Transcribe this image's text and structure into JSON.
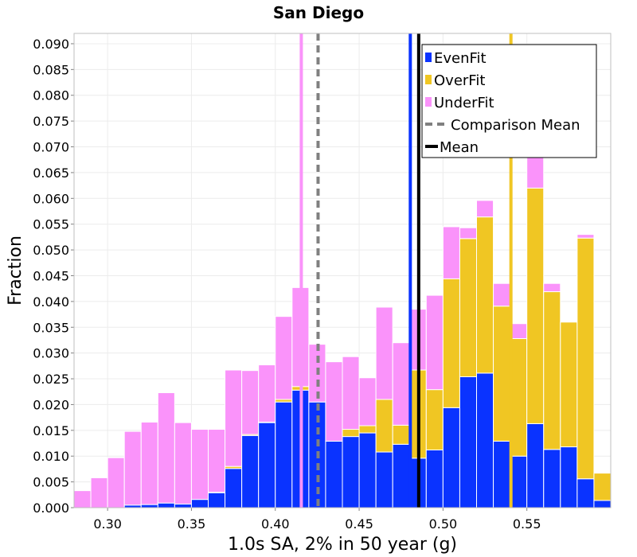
{
  "chart_data": {
    "type": "bar",
    "stacked": true,
    "title": "San Diego",
    "xlabel": "1.0s SA, 2% in 50 year (g)",
    "ylabel": "Fraction",
    "xlim": [
      0.28,
      0.6
    ],
    "ylim": [
      0,
      0.092
    ],
    "bin_width": 0.01,
    "xticks": [
      "0.30",
      "0.35",
      "0.40",
      "0.45",
      "0.50",
      "0.55"
    ],
    "xtick_values": [
      0.3,
      0.35,
      0.4,
      0.45,
      0.5,
      0.55
    ],
    "yticks": [
      "0.000",
      "0.005",
      "0.010",
      "0.015",
      "0.020",
      "0.025",
      "0.030",
      "0.035",
      "0.040",
      "0.045",
      "0.050",
      "0.055",
      "0.060",
      "0.065",
      "0.070",
      "0.075",
      "0.080",
      "0.085",
      "0.090"
    ],
    "ytick_values": [
      0,
      0.005,
      0.01,
      0.015,
      0.02,
      0.025,
      0.03,
      0.035,
      0.04,
      0.045,
      0.05,
      0.055,
      0.06,
      0.065,
      0.07,
      0.075,
      0.08,
      0.085,
      0.09
    ],
    "bin_centers": [
      0.285,
      0.295,
      0.305,
      0.315,
      0.325,
      0.335,
      0.345,
      0.355,
      0.365,
      0.375,
      0.385,
      0.395,
      0.405,
      0.415,
      0.425,
      0.435,
      0.445,
      0.455,
      0.465,
      0.475,
      0.485,
      0.495,
      0.505,
      0.515,
      0.525,
      0.535,
      0.545,
      0.555,
      0.565,
      0.575,
      0.585,
      0.595
    ],
    "series": [
      {
        "name": "EvenFit",
        "color": "#0a33ff",
        "values": [
          0,
          0,
          0,
          0.0005,
          0.0006,
          0.0009,
          0.0007,
          0.0016,
          0.0029,
          0.0076,
          0.014,
          0.0165,
          0.0205,
          0.0228,
          0.0205,
          0.0129,
          0.0138,
          0.0145,
          0.0108,
          0.0123,
          0.0096,
          0.0112,
          0.0194,
          0.0254,
          0.0261,
          0.0129,
          0.01,
          0.0163,
          0.0113,
          0.0118,
          0.0056,
          0.0014
        ]
      },
      {
        "name": "OverFit",
        "color": "#f0c623",
        "values": [
          0,
          0,
          0,
          0,
          0,
          0,
          0,
          0,
          0.0001,
          0.0004,
          0.0002,
          0.0001,
          0.0005,
          0.0007,
          0,
          0,
          0.0014,
          0.0014,
          0.0102,
          0.0037,
          0.0171,
          0.0117,
          0.025,
          0.0268,
          0.0303,
          0.0262,
          0.0228,
          0.0457,
          0.0306,
          0.0242,
          0.0467,
          0.0053
        ]
      },
      {
        "name": "UnderFit",
        "color": "#fa93fa",
        "values": [
          0.0033,
          0.0058,
          0.0097,
          0.0143,
          0.016,
          0.0214,
          0.0158,
          0.0136,
          0.0122,
          0.0187,
          0.0124,
          0.0111,
          0.0161,
          0.0192,
          0.0112,
          0.0154,
          0.0141,
          0.0093,
          0.0179,
          0.016,
          0.0118,
          0.0183,
          0.0101,
          0.0021,
          0.0032,
          0.0044,
          0.0029,
          0.008,
          0.0016,
          0,
          0.0007,
          0
        ]
      }
    ],
    "vertical_lines": [
      {
        "name": "EvenFit",
        "x": 0.4805,
        "color": "#0a33ff",
        "style": "solid"
      },
      {
        "name": "OverFit",
        "x": 0.5405,
        "color": "#f0c623",
        "style": "solid"
      },
      {
        "name": "UnderFit",
        "x": 0.4155,
        "color": "#fa93fa",
        "style": "solid"
      },
      {
        "name": "Comparison Mean",
        "x": 0.4255,
        "color": "#808080",
        "style": "dashed"
      },
      {
        "name": "Mean",
        "x": 0.4855,
        "color": "#000000",
        "style": "solid"
      }
    ],
    "legend": {
      "position": "top-right",
      "entries": [
        {
          "label": "EvenFit",
          "color": "#0a33ff",
          "kind": "box"
        },
        {
          "label": "OverFit",
          "color": "#f0c623",
          "kind": "box"
        },
        {
          "label": "UnderFit",
          "color": "#fa93fa",
          "kind": "box"
        },
        {
          "label": "Comparison Mean",
          "color": "#808080",
          "kind": "dashed"
        },
        {
          "label": "Mean",
          "color": "#000000",
          "kind": "solid"
        }
      ]
    },
    "grid": true
  }
}
